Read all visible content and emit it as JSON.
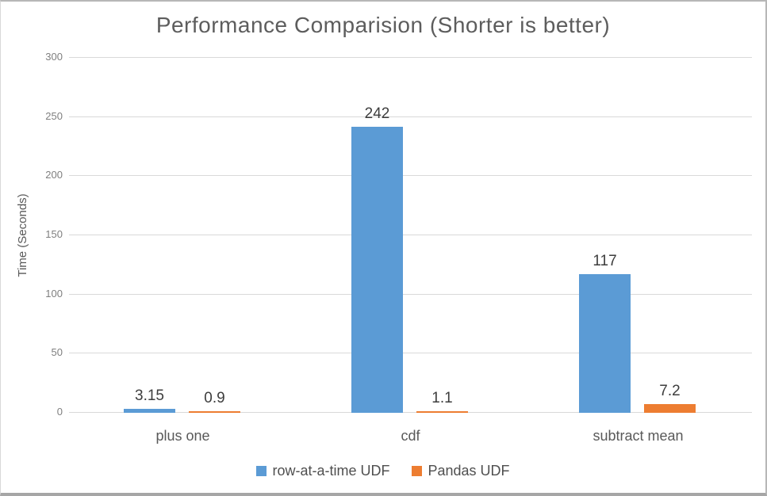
{
  "chart_data": {
    "type": "bar",
    "title": "Performance Comparision (Shorter is better)",
    "ylabel": "Time (Seconds)",
    "xlabel": "",
    "categories": [
      "plus one",
      "cdf",
      "subtract mean"
    ],
    "series": [
      {
        "name": "row-at-a-time UDF",
        "color": "#5B9BD5",
        "values": [
          3.15,
          242,
          117
        ]
      },
      {
        "name": "Pandas UDF",
        "color": "#ED7D31",
        "values": [
          0.9,
          1.1,
          7.2
        ]
      }
    ],
    "data_labels": [
      "3.15",
      "242",
      "117",
      "0.9",
      "1.1",
      "7.2"
    ],
    "ylim": [
      0,
      300
    ],
    "yticks": [
      0,
      50,
      100,
      150,
      200,
      250,
      300
    ],
    "grid": "horizontal",
    "gridline_color": "#d9d9d9",
    "legend_position": "bottom",
    "data_labels_shown": true
  }
}
